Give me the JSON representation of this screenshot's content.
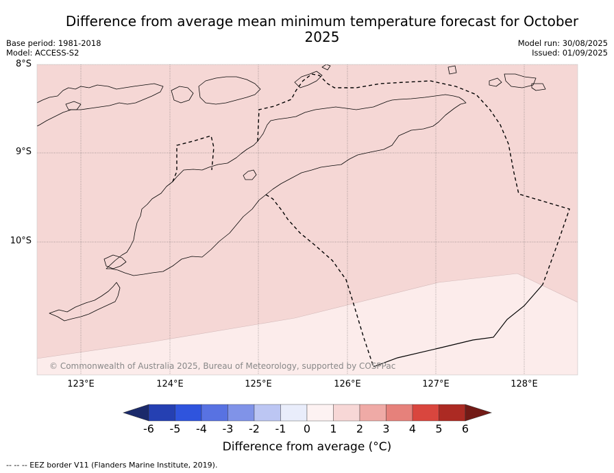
{
  "title": "Difference from average mean minimum temperature forecast for October 2025",
  "base_period": "Base period: 1981-2018",
  "model": "Model: ACCESS-S2",
  "model_run": "Model run: 30/08/2025",
  "issued": "Issued: 01/09/2025",
  "copyright": "© Commonwealth of Australia 2025, Bureau of Meteorology, supported by COSPPac",
  "footnote": "--  --  -- EEZ border V11 (Flanders Marine Institute, 2019).",
  "lat_labels": [
    "8°S",
    "9°S",
    "10°S"
  ],
  "lon_labels": [
    "123°E",
    "124°E",
    "125°E",
    "126°E",
    "127°E",
    "128°E"
  ],
  "colorbar": {
    "label": "Difference from average (°C)",
    "ticks": [
      "-6",
      "-5",
      "-4",
      "-3",
      "-2",
      "-1",
      "0",
      "1",
      "2",
      "3",
      "4",
      "5",
      "6"
    ],
    "colors": [
      "#1b2a6b",
      "#2540b2",
      "#2f54dd",
      "#5872e2",
      "#8093e8",
      "#bcc6f3",
      "#e9edfb",
      "#fdf2f2",
      "#f7d7d6",
      "#efaaa6",
      "#e6817b",
      "#d9463e",
      "#ac2a23",
      "#721a16"
    ]
  },
  "map_fill": {
    "one_to_two": "#f5d7d5",
    "zero_to_one": "#fceceb"
  }
}
